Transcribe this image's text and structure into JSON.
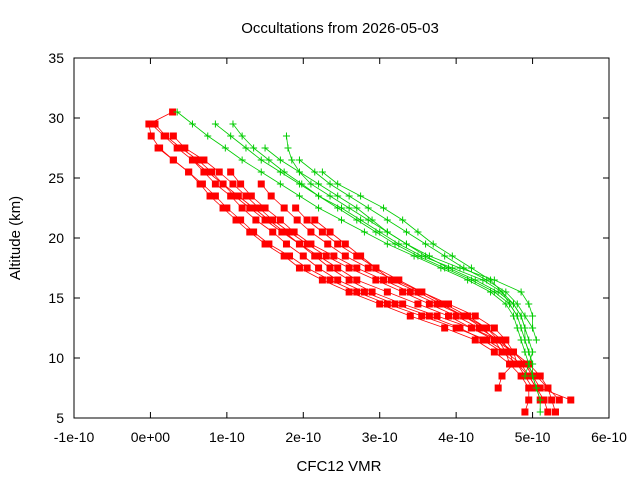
{
  "chart_data": {
    "type": "scatter",
    "title": "Occultations from 2026-05-03",
    "xlabel": "CFC12 VMR",
    "ylabel": "Altitude (km)",
    "xlim": [
      -1e-10,
      6e-10
    ],
    "ylim": [
      5,
      35
    ],
    "x_ticks": [
      -1e-10,
      0,
      1e-10,
      2e-10,
      3e-10,
      4e-10,
      5e-10,
      6e-10
    ],
    "x_tick_labels": [
      "-1e-10",
      "0e+00",
      "1e-10",
      "2e-10",
      "3e-10",
      "4e-10",
      "5e-10",
      "6e-10"
    ],
    "y_ticks": [
      5,
      10,
      15,
      20,
      25,
      30,
      35
    ],
    "y_tick_labels": [
      "5",
      "10",
      "15",
      "20",
      "25",
      "30",
      "35"
    ],
    "grid": false,
    "legend": "none",
    "series": [
      {
        "color": "#ff0000",
        "marker": "filled-square",
        "profiles": [
          {
            "altitude": [
              30.5,
              29.5,
              28.5,
              27.5,
              26.5,
              25.5,
              24.5,
              23.5,
              22.5,
              21.5,
              20.5,
              19.5,
              18.5,
              17.5,
              16.5,
              15.5,
              14.5,
              13.5,
              12.5,
              11.5,
              10.5,
              9.5,
              8.5,
              7.5,
              6.5,
              5.5
            ],
            "vmr": [
              2.9e-11,
              -2e-12,
              1e-12,
              1.2e-11,
              3e-11,
              5e-11,
              6.5e-11,
              7.8e-11,
              9.5e-11,
              1.12e-10,
              1.3e-10,
              1.5e-10,
              1.75e-10,
              1.95e-10,
              2.25e-10,
              2.6e-10,
              3e-10,
              3.4e-10,
              3.85e-10,
              4.25e-10,
              4.5e-10,
              4.7e-10,
              4.85e-10,
              4.95e-10,
              4.95e-10,
              4.9e-10
            ]
          },
          {
            "altitude": [
              29.5,
              28.5,
              27.5,
              26.5,
              25.5,
              24.5,
              23.5,
              22.5,
              21.5,
              20.5,
              19.5,
              18.5,
              17.5,
              16.5,
              15.5,
              14.5,
              13.5,
              12.5,
              11.5,
              10.5,
              9.5,
              8.5,
              7.5,
              6.5,
              5.5
            ],
            "vmr": [
              6e-12,
              2e-11,
              4e-11,
              6.2e-11,
              8e-11,
              9.5e-11,
              1.1e-10,
              1.3e-10,
              1.5e-10,
              1.72e-10,
              1.95e-10,
              2.2e-10,
              2.45e-10,
              2.7e-10,
              3.1e-10,
              3.5e-10,
              3.9e-10,
              4.2e-10,
              4.5e-10,
              4.75e-10,
              4.95e-10,
              5.1e-10,
              5.2e-10,
              5.25e-10,
              5.3e-10
            ]
          },
          {
            "altitude": [
              29.5,
              28.5,
              27.5,
              26.5,
              25.5,
              24.5,
              23.5,
              22.5,
              21.5,
              20.5,
              19.5,
              18.5,
              17.5,
              16.5,
              15.5,
              14.5,
              13.5,
              12.5,
              11.5,
              10.5,
              9.5,
              8.5,
              7.5,
              6.5
            ],
            "vmr": [
              1e-12,
              1.8e-11,
              3.5e-11,
              5.5e-11,
              7e-11,
              8.5e-11,
              1.05e-10,
              1.2e-10,
              1.38e-10,
              1.6e-10,
              1.78e-10,
              2e-10,
              2.2e-10,
              2.45e-10,
              2.8e-10,
              3.2e-10,
              3.65e-10,
              4.05e-10,
              4.35e-10,
              4.6e-10,
              4.8e-10,
              4.95e-10,
              5.05e-10,
              5.1e-10
            ]
          },
          {
            "altitude": [
              28.5,
              27.5,
              26.5,
              25.5,
              24.5,
              23.5,
              22.5,
              21.5,
              20.5,
              19.5,
              18.5,
              17.5,
              16.5,
              15.5,
              14.5,
              13.5,
              12.5,
              11.5,
              10.5,
              9.5,
              8.5,
              7.5,
              6.5
            ],
            "vmr": [
              3e-11,
              4.5e-11,
              7e-11,
              9e-11,
              1.08e-10,
              1.25e-10,
              1.42e-10,
              1.6e-10,
              1.82e-10,
              2.05e-10,
              2.3e-10,
              2.6e-10,
              2.95e-10,
              3.3e-10,
              3.65e-10,
              4e-10,
              4.3e-10,
              4.55e-10,
              4.75e-10,
              4.9e-10,
              5.05e-10,
              5.2e-10,
              5.35e-10
            ]
          },
          {
            "altitude": [
              27.5,
              26.5,
              25.5,
              24.5,
              23.5,
              22.5,
              21.5,
              20.5,
              19.5,
              18.5,
              17.5,
              16.5,
              15.5,
              14.5,
              13.5,
              12.5,
              11.5,
              10.5,
              9.5,
              8.5,
              7.5,
              6.5,
              5.5
            ],
            "vmr": [
              1e-11,
              3e-11,
              5e-11,
              6.8e-11,
              8.5e-11,
              1e-10,
              1.18e-10,
              1.35e-10,
              1.55e-10,
              1.82e-10,
              2.05e-10,
              2.35e-10,
              2.7e-10,
              3.1e-10,
              3.55e-10,
              4e-10,
              4.4e-10,
              4.65e-10,
              4.85e-10,
              4.95e-10,
              5.05e-10,
              5.15e-10,
              5.2e-10
            ]
          },
          {
            "altitude": [
              26.5,
              25.5,
              24.5,
              23.5,
              22.5,
              21.5,
              20.5,
              19.5,
              18.5,
              17.5,
              16.5,
              15.5,
              14.5,
              13.5,
              12.5,
              11.5,
              10.5,
              9.5,
              8.5,
              7.5,
              6.5
            ],
            "vmr": [
              5.5e-11,
              7.5e-11,
              9.5e-11,
              1.15e-10,
              1.35e-10,
              1.55e-10,
              1.75e-10,
              1.95e-10,
              2.15e-10,
              2.35e-10,
              2.6e-10,
              2.9e-10,
              3.3e-10,
              3.75e-10,
              4.2e-10,
              4.55e-10,
              4.75e-10,
              4.9e-10,
              5e-10,
              5.1e-10,
              5.5e-10
            ]
          },
          {
            "altitude": [
              25.5,
              24.5,
              23.5,
              22.5,
              21.5,
              20.5,
              19.5,
              18.5,
              17.5,
              16.5,
              15.5,
              14.5,
              13.5,
              12.5,
              11.5,
              10.5,
              9.5,
              8.5,
              7.5
            ],
            "vmr": [
              1.05e-10,
              1.18e-10,
              1.32e-10,
              1.5e-10,
              1.7e-10,
              1.88e-10,
              2.1e-10,
              2.4e-10,
              2.7e-10,
              3.05e-10,
              3.4e-10,
              3.75e-10,
              4.1e-10,
              4.4e-10,
              4.6e-10,
              4.7e-10,
              4.75e-10,
              4.6e-10,
              4.55e-10
            ]
          },
          {
            "altitude": [
              24.5,
              23.5,
              22.5,
              21.5,
              20.5,
              19.5,
              18.5,
              17.5,
              16.5,
              15.5,
              14.5,
              13.5,
              12.5,
              11.5,
              10.5,
              9.5,
              8.5,
              7.5
            ],
            "vmr": [
              1.45e-10,
              1.58e-10,
              1.75e-10,
              1.92e-10,
              2.1e-10,
              2.32e-10,
              2.55e-10,
              2.85e-10,
              3.2e-10,
              3.55e-10,
              3.9e-10,
              4.25e-10,
              4.5e-10,
              4.65e-10,
              4.75e-10,
              4.8e-10,
              4.9e-10,
              5e-10
            ]
          },
          {
            "altitude": [
              22.5,
              21.5,
              20.5,
              19.5,
              18.5,
              17.5,
              16.5,
              15.5,
              14.5,
              13.5,
              12.5,
              11.5,
              10.5,
              9.5
            ],
            "vmr": [
              1.9e-10,
              2.05e-10,
              2.25e-10,
              2.45e-10,
              2.7e-10,
              2.95e-10,
              3.25e-10,
              3.55e-10,
              3.85e-10,
              4.15e-10,
              4.4e-10,
              4.55e-10,
              4.65e-10,
              4.7e-10
            ]
          },
          {
            "altitude": [
              21.5,
              20.5,
              19.5,
              18.5,
              17.5,
              16.5,
              15.5,
              14.5,
              13.5,
              12.5,
              11.5,
              10.5
            ],
            "vmr": [
              2.15e-10,
              2.35e-10,
              2.55e-10,
              2.75e-10,
              2.95e-10,
              3.15e-10,
              3.5e-10,
              3.8e-10,
              4.1e-10,
              4.35e-10,
              4.5e-10,
              4.6e-10
            ]
          }
        ]
      },
      {
        "color": "#00cc00",
        "marker": "plus",
        "profiles": [
          {
            "altitude": [
              30.5,
              29.5,
              28.5,
              27.5,
              26.5,
              25.5,
              24.5,
              23.5,
              22.5,
              21.5,
              20.5,
              19.5,
              18.5,
              17.5,
              16.5,
              15.5,
              14.5,
              13.5,
              12.5,
              11.5,
              10.5,
              9.5,
              8.5,
              7.5,
              6.5,
              5.5
            ],
            "vmr": [
              3.5e-11,
              5.5e-11,
              7.5e-11,
              9.8e-11,
              1.2e-10,
              1.45e-10,
              1.7e-10,
              1.95e-10,
              2.2e-10,
              2.5e-10,
              2.8e-10,
              3.1e-10,
              3.45e-10,
              3.8e-10,
              4.15e-10,
              4.45e-10,
              4.65e-10,
              4.75e-10,
              4.8e-10,
              4.85e-10,
              4.9e-10,
              4.95e-10,
              5e-10,
              5.05e-10,
              5.1e-10,
              5.1e-10
            ]
          },
          {
            "altitude": [
              29.5,
              28.5,
              27.5,
              26.5,
              25.5,
              24.5,
              23.5,
              22.5,
              21.5,
              20.5,
              19.5,
              18.5,
              17.5,
              16.5,
              15.5,
              14.5,
              13.5,
              12.5,
              11.5,
              10.5,
              9.5,
              8.5,
              7.5
            ],
            "vmr": [
              8.5e-11,
              1.05e-10,
              1.25e-10,
              1.45e-10,
              1.7e-10,
              1.95e-10,
              2.2e-10,
              2.45e-10,
              2.7e-10,
              2.95e-10,
              3.2e-10,
              3.5e-10,
              3.85e-10,
              4.2e-10,
              4.5e-10,
              4.7e-10,
              4.8e-10,
              4.85e-10,
              4.9e-10,
              4.95e-10,
              5e-10,
              5e-10,
              5.05e-10
            ]
          },
          {
            "altitude": [
              29.5,
              28.5,
              27.5,
              26.5,
              25.5,
              24.5,
              23.5,
              22.5,
              21.5,
              20.5,
              19.5,
              18.5,
              17.5,
              16.5,
              15.5,
              14.5,
              13.5,
              12.5,
              11.5,
              10.5,
              9.5,
              8.5
            ],
            "vmr": [
              1.08e-10,
              1.2e-10,
              1.35e-10,
              1.55e-10,
              1.75e-10,
              1.98e-10,
              2.2e-10,
              2.5e-10,
              2.75e-10,
              3e-10,
              3.25e-10,
              3.55e-10,
              3.95e-10,
              4.35e-10,
              4.6e-10,
              4.75e-10,
              4.85e-10,
              4.9e-10,
              4.95e-10,
              5e-10,
              4.95e-10,
              4.9e-10
            ]
          },
          {
            "altitude": [
              28.5,
              27.5,
              26.5,
              25.5,
              24.5,
              23.5,
              22.5,
              21.5,
              20.5,
              19.5,
              18.5,
              17.5,
              16.5,
              15.5,
              14.5,
              13.5,
              12.5,
              11.5
            ],
            "vmr": [
              1.78e-10,
              1.8e-10,
              1.85e-10,
              1.95e-10,
              2.1e-10,
              2.35e-10,
              2.6e-10,
              2.85e-10,
              3.1e-10,
              3.35e-10,
              3.65e-10,
              4.05e-10,
              4.5e-10,
              4.85e-10,
              4.95e-10,
              5e-10,
              5e-10,
              5.05e-10
            ]
          },
          {
            "altitude": [
              27.5,
              26.5,
              25.5,
              24.5,
              23.5,
              22.5,
              21.5,
              20.5,
              19.5,
              18.5,
              17.5,
              16.5,
              15.5,
              14.5,
              13.5,
              12.5,
              11.5,
              10.5,
              9.5
            ],
            "vmr": [
              1.5e-10,
              1.7e-10,
              1.95e-10,
              2.2e-10,
              2.45e-10,
              2.7e-10,
              2.9e-10,
              3.1e-10,
              3.35e-10,
              3.6e-10,
              3.9e-10,
              4.25e-10,
              4.55e-10,
              4.75e-10,
              4.85e-10,
              4.9e-10,
              4.9e-10,
              4.95e-10,
              5e-10
            ]
          },
          {
            "altitude": [
              26.5,
              25.5,
              24.5,
              23.5,
              22.5,
              21.5,
              20.5,
              19.5,
              18.5,
              17.5,
              16.5,
              15.5,
              14.5,
              13.5,
              12.5
            ],
            "vmr": [
              1.95e-10,
              2.15e-10,
              2.35e-10,
              2.6e-10,
              2.85e-10,
              3.1e-10,
              3.35e-10,
              3.6e-10,
              3.85e-10,
              4.1e-10,
              4.4e-10,
              4.65e-10,
              4.8e-10,
              4.9e-10,
              5e-10
            ]
          },
          {
            "altitude": [
              25.5,
              24.5,
              23.5,
              22.5,
              21.5,
              20.5,
              19.5,
              18.5,
              17.5,
              16.5,
              15.5,
              14.5,
              13.5
            ],
            "vmr": [
              2.25e-10,
              2.45e-10,
              2.75e-10,
              3.05e-10,
              3.3e-10,
              3.5e-10,
              3.7e-10,
              3.95e-10,
              4.2e-10,
              4.45e-10,
              4.6e-10,
              4.7e-10,
              4.8e-10
            ]
          }
        ]
      }
    ]
  }
}
